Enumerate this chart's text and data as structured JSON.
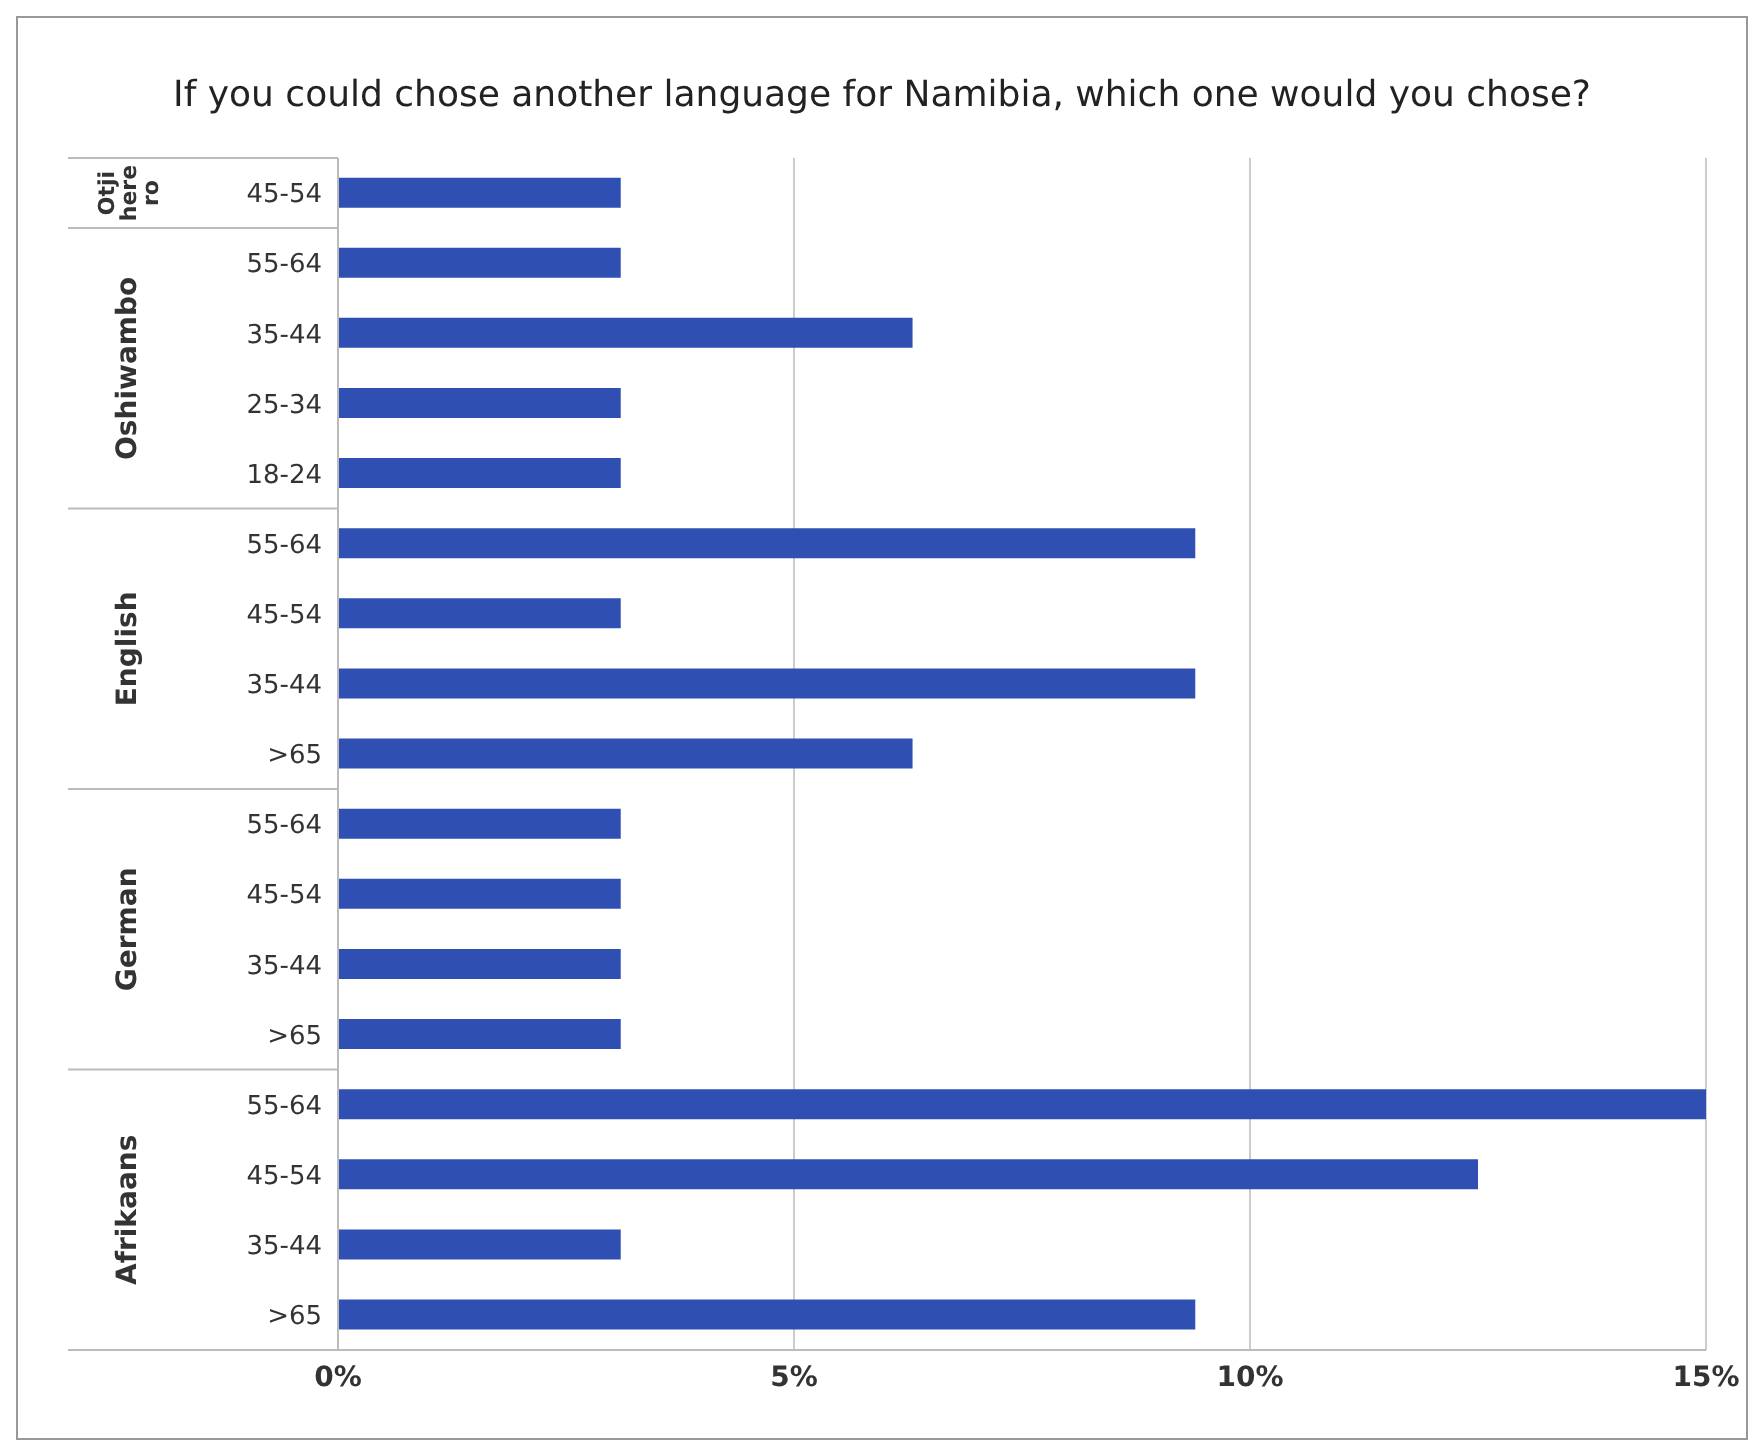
{
  "chart_data": {
    "type": "bar",
    "orientation": "horizontal",
    "title": "If you could chose another language for Namibia, which one would you chose?",
    "categories": [
      "45-54",
      "55-64",
      "35-44",
      "25-34",
      "18-24",
      "55-64",
      "45-54",
      "35-44",
      ">65",
      "55-64",
      "45-54",
      "35-44",
      ">65",
      "55-64",
      "45-54",
      "35-44",
      ">65"
    ],
    "values": [
      3.1,
      3.1,
      6.3,
      3.1,
      3.1,
      9.4,
      3.1,
      9.4,
      6.3,
      3.1,
      3.1,
      3.1,
      3.1,
      15,
      12.5,
      3.1,
      9.4
    ],
    "color": "#2f4fb3",
    "annotations": [
      "Otjiherero",
      "Oshiwambo",
      "English",
      "German",
      "Afrikaans"
    ],
    "xlim": [
      0,
      15
    ],
    "xticks": [
      {
        "value": 0,
        "label": "0%"
      },
      {
        "value": 5,
        "label": "5%"
      },
      {
        "value": 10,
        "label": "10%"
      },
      {
        "value": 15,
        "label": "15%"
      }
    ],
    "grid": "x"
  }
}
